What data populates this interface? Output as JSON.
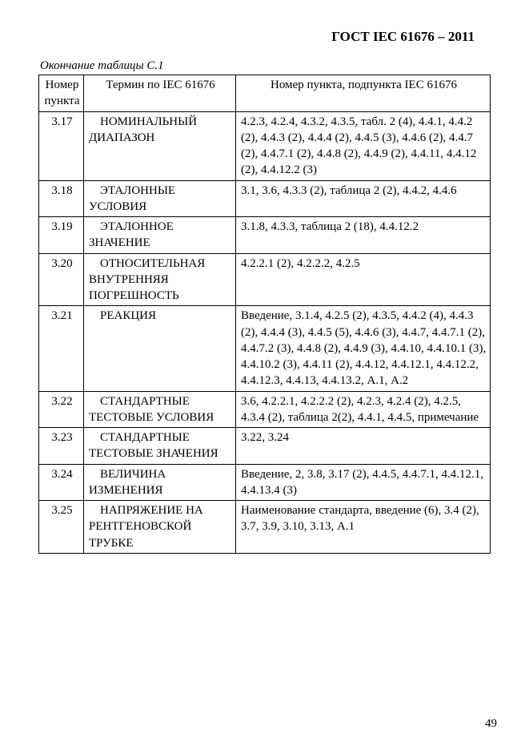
{
  "doc_title": "ГОСТ IEC 61676 – 2011",
  "caption": "Окончание таблицы С.1",
  "page_number": "49",
  "headers": {
    "h1": "Номер пункта",
    "h2": "Термин по IEC 61676",
    "h3": "Номер пункта, подпункта IEC 61676"
  },
  "rows": [
    {
      "num": "3.17",
      "term": "НОМИНАЛЬНЫЙ ДИАПАЗОН",
      "ref": "4.2.3, 4.2.4, 4.3.2, 4.3.5, табл. 2 (4), 4.4.1, 4.4.2 (2), 4.4.3 (2), 4.4.4 (2), 4.4.5 (3), 4.4.6 (2), 4.4.7 (2), 4.4.7.1 (2), 4.4.8 (2), 4.4.9 (2), 4.4.11, 4.4.12 (2), 4.4.12.2 (3)"
    },
    {
      "num": "3.18",
      "term": "ЭТАЛОННЫЕ УСЛОВИЯ",
      "ref": "3.1, 3.6, 4.3.3 (2), таблица 2 (2), 4.4.2, 4.4.6"
    },
    {
      "num": "3.19",
      "term": "ЭТАЛОННОЕ ЗНАЧЕНИЕ",
      "ref": "3.1.8, 4.3.3, таблица 2 (18), 4.4.12.2"
    },
    {
      "num": "3.20",
      "term": "ОТНОСИТЕЛЬНАЯ ВНУТРЕННЯЯ ПОГРЕШНОСТЬ",
      "ref": "4.2.2.1 (2), 4.2.2.2, 4.2.5"
    },
    {
      "num": "3.21",
      "term": "РЕАКЦИЯ",
      "ref": "Введение, 3.1.4, 4.2.5 (2), 4.3.5, 4.4.2 (4), 4.4.3 (2), 4.4.4 (3), 4.4.5 (5), 4.4.6 (3), 4.4.7, 4.4.7.1 (2), 4.4.7.2 (3), 4.4.8 (2), 4.4.9 (3), 4.4.10, 4.4.10.1 (3), 4.4.10.2 (3), 4.4.11 (2), 4.4.12, 4.4.12.1, 4.4.12.2, 4.4.12.3, 4.4.13, 4.4.13.2, А.1, А.2"
    },
    {
      "num": "3.22",
      "term": "СТАНДАРТНЫЕ ТЕСТОВЫЕ УСЛОВИЯ",
      "ref": "3.6, 4.2.2.1, 4.2.2.2 (2), 4.2.3, 4.2.4 (2), 4.2.5, 4.3.4 (2), таблица 2(2), 4.4.1, 4.4.5, примечание"
    },
    {
      "num": "3.23",
      "term": "СТАНДАРТНЫЕ ТЕСТОВЫЕ ЗНАЧЕНИЯ",
      "ref": "3.22, 3.24"
    },
    {
      "num": "3.24",
      "term": "ВЕЛИЧИНА ИЗМЕНЕНИЯ",
      "ref": "Введение, 2, 3.8, 3.17 (2), 4.4.5, 4.4.7.1, 4.4.12.1, 4.4.13.4 (3)"
    },
    {
      "num": "3.25",
      "term": "НАПРЯЖЕНИЕ НА РЕНТГЕНОВСКОЙ ТРУБКЕ",
      "ref": "Наименование стандарта, введение (6), 3.4 (2), 3.7, 3.9, 3.10, 3.13, А.1"
    }
  ]
}
